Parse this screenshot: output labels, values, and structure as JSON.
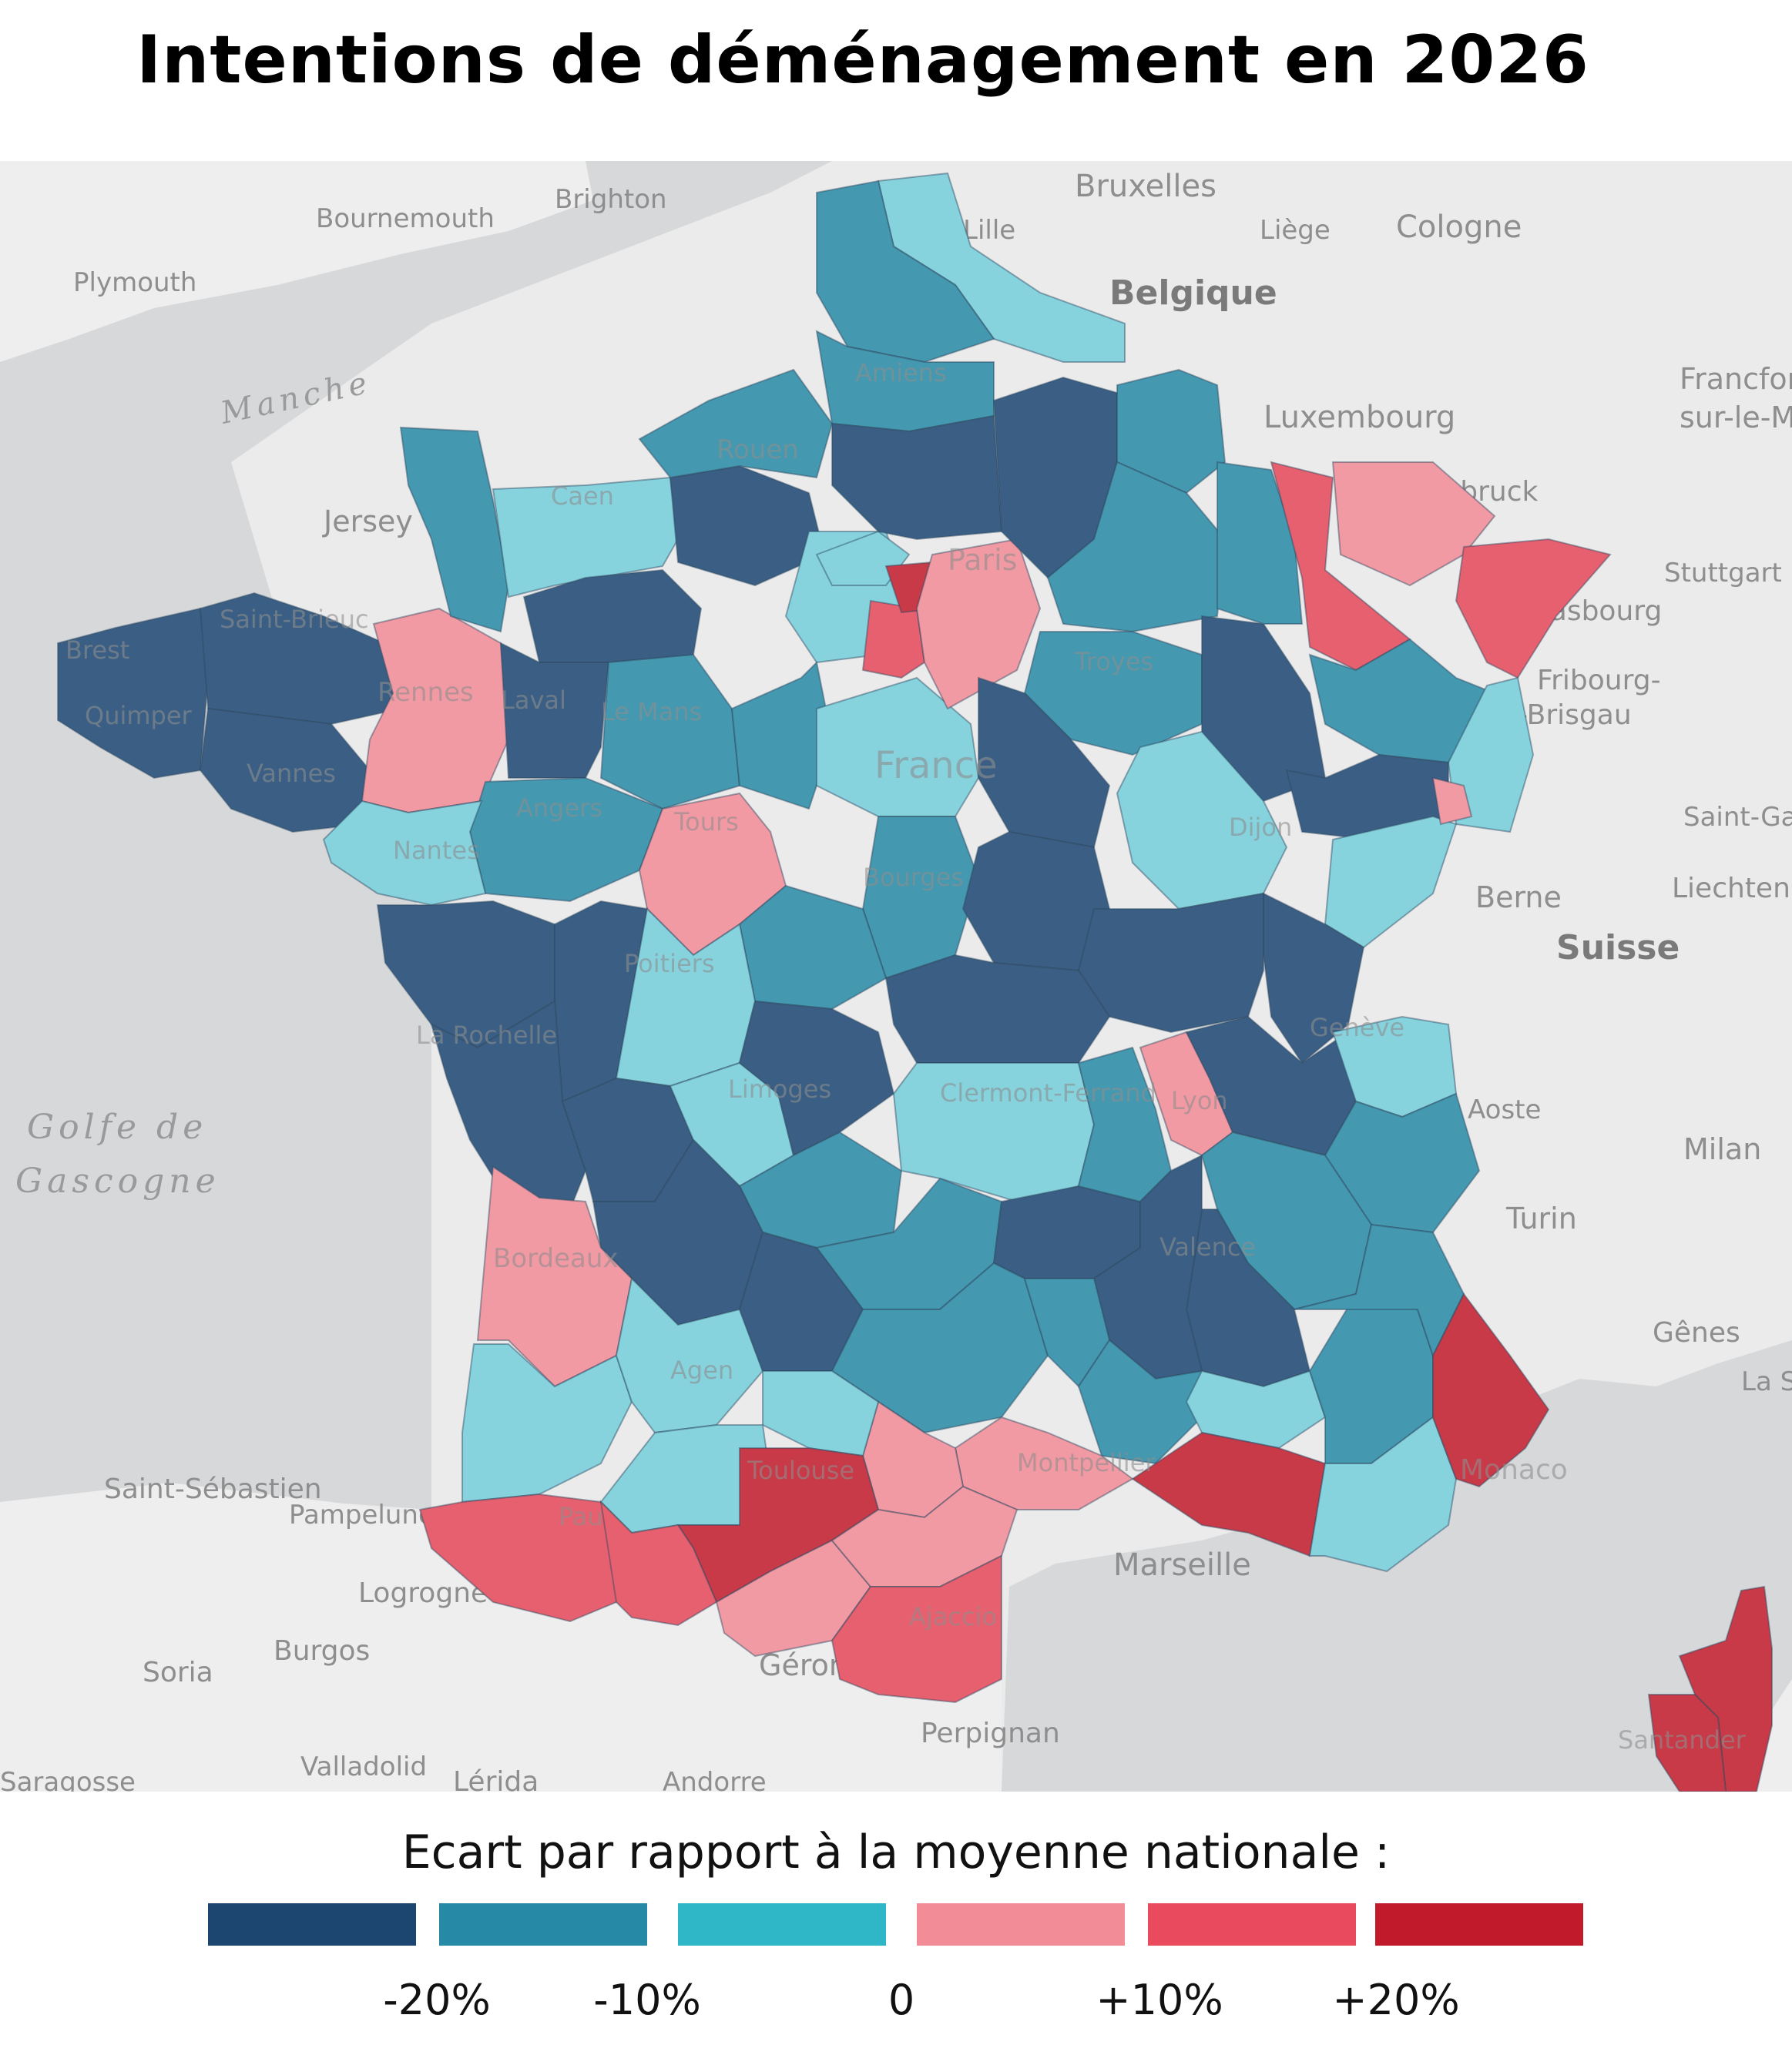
{
  "title": "Intentions de déménagement en 2026",
  "legend": {
    "title": "Ecart par rapport à la moyenne nationale :",
    "swatches": [
      {
        "color": "#1c4670"
      },
      {
        "color": "#2689a5"
      },
      {
        "color": "#2fb7c7"
      },
      {
        "color": "#f28d98"
      },
      {
        "color": "#ea4a5e"
      },
      {
        "color": "#c01a2b"
      }
    ],
    "ticks": [
      "-20%",
      "-10%",
      "0",
      "+10%",
      "+20%"
    ]
  },
  "palette": {
    "c1": "#3b5f84",
    "c2": "#4498b0",
    "c3": "#86d3de",
    "c4": "#f29aa4",
    "c5": "#e7606f",
    "c6": "#c83a48"
  },
  "map": {
    "sea_labels": [
      "Manche",
      "Golfe de",
      "Gascogne"
    ],
    "countries": [
      "Belgique",
      "Suisse"
    ],
    "places": [
      "Bournemouth",
      "Brighton",
      "Plymouth",
      "Jersey",
      "Bruxelles",
      "Lille",
      "Liège",
      "Cologne",
      "Luxembourg",
      "Sarrebruck",
      "Strasbourg",
      "Stuttgart",
      "Francfort",
      "sur-le-M",
      "Fribourg-",
      "en-Brisgau",
      "Saint-Ga",
      "Liechten",
      "Berne",
      "Aoste",
      "Milan",
      "Turin",
      "Gênes",
      "La S",
      "Monaco",
      "Marseille",
      "Montpellier",
      "Toulouse",
      "Pau",
      "Agen",
      "Bordeaux",
      "Santander",
      "Saint-Sébastien",
      "Pampelune",
      "Logrogne",
      "Burgos",
      "Soria",
      "Valladolid",
      "Saragosse",
      "Lérida",
      "Andorre",
      "Gérone",
      "Perpignan",
      "Ajaccio",
      "Brest",
      "Quimper",
      "Vannes",
      "Saint-Brieuc",
      "Rennes",
      "Laval",
      "Le Mans",
      "Angers",
      "Nantes",
      "Tours",
      "Poitiers",
      "La Rochelle",
      "Limoges",
      "Clermont-Ferrand",
      "Lyon",
      "Genève",
      "Valence",
      "Dijon",
      "Troyes",
      "Paris",
      "Caen",
      "Rouen",
      "Amiens",
      "France",
      "Bourges"
    ]
  }
}
